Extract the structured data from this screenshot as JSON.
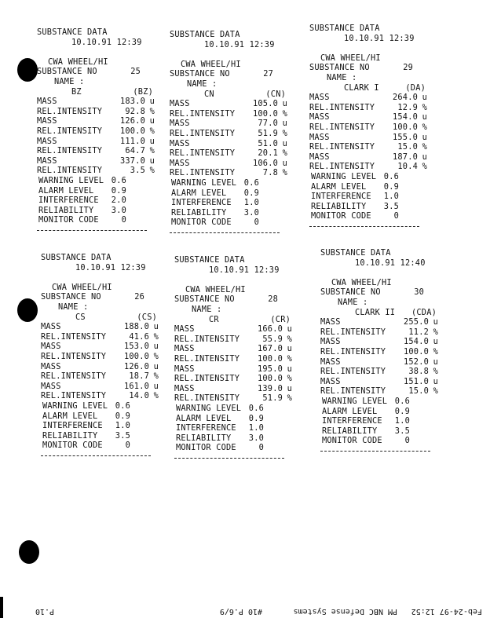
{
  "blocks": [
    {
      "title": "SUBSTANCE DATA",
      "datetime": "10.10.91 12:39",
      "header": "CWA WHEEL/HI",
      "substance_no_label": "SUBSTANCE NO",
      "substance_no": "25",
      "name_label": "NAME :",
      "name": "BZ",
      "code": "(BZ)",
      "rows": [
        [
          "MASS",
          "183.0",
          "u"
        ],
        [
          "REL.INTENSITY",
          "92.8",
          "%"
        ],
        [
          "MASS",
          "126.0",
          "u"
        ],
        [
          "REL.INTENSITY",
          "100.0",
          "%"
        ],
        [
          "MASS",
          "111.0",
          "u"
        ],
        [
          "REL.INTENSITY",
          "64.7",
          "%"
        ],
        [
          "MASS",
          "337.0",
          "u"
        ],
        [
          "REL.INTENSITY",
          "3.5",
          "%"
        ]
      ],
      "levels": [
        [
          "WARNING LEVEL",
          "0.6"
        ],
        [
          "ALARM LEVEL",
          "0.9"
        ],
        [
          "INTERFERENCE",
          "2.0"
        ],
        [
          "RELIABILITY",
          "3.0"
        ],
        [
          "MONITOR CODE",
          "0"
        ]
      ]
    },
    {
      "title": "SUBSTANCE DATA",
      "datetime": "10.10.91 12:39",
      "header": "CWA WHEEL/HI",
      "substance_no_label": "SUBSTANCE NO",
      "substance_no": "27",
      "name_label": "NAME :",
      "name": "CN",
      "code": "(CN)",
      "rows": [
        [
          "MASS",
          "105.0",
          "u"
        ],
        [
          "REL.INTENSITY",
          "100.0",
          "%"
        ],
        [
          "MASS",
          "77.0",
          "u"
        ],
        [
          "REL.INTENSITY",
          "51.9",
          "%"
        ],
        [
          "MASS",
          "51.0",
          "u"
        ],
        [
          "REL.INTENSITY",
          "20.1",
          "%"
        ],
        [
          "MASS",
          "106.0",
          "u"
        ],
        [
          "REL.INTENSITY",
          "7.8",
          "%"
        ]
      ],
      "levels": [
        [
          "WARNING LEVEL",
          "0.6"
        ],
        [
          "ALARM LEVEL",
          "0.9"
        ],
        [
          "INTERFERENCE",
          "1.0"
        ],
        [
          "RELIABILITY",
          "3.0"
        ],
        [
          "MONITOR CODE",
          "0"
        ]
      ]
    },
    {
      "title": "SUBSTANCE DATA",
      "datetime": "10.10.91 12:39",
      "header": "CWA WHEEL/HI",
      "substance_no_label": "SUBSTANCE NO",
      "substance_no": "29",
      "name_label": "NAME :",
      "name": "CLARK I",
      "code": "(DA)",
      "rows": [
        [
          "MASS",
          "264.0",
          "u"
        ],
        [
          "REL.INTENSITY",
          "12.9",
          "%"
        ],
        [
          "MASS",
          "154.0",
          "u"
        ],
        [
          "REL.INTENSITY",
          "100.0",
          "%"
        ],
        [
          "MASS",
          "155.0",
          "u"
        ],
        [
          "REL.INTENSITY",
          "15.0",
          "%"
        ],
        [
          "MASS",
          "187.0",
          "u"
        ],
        [
          "REL.INTENSITY",
          "10.4",
          "%"
        ]
      ],
      "levels": [
        [
          "WARNING LEVEL",
          "0.6"
        ],
        [
          "ALARM LEVEL",
          "0.9"
        ],
        [
          "INTERFERENCE",
          "1.0"
        ],
        [
          "RELIABILITY",
          "3.5"
        ],
        [
          "MONITOR CODE",
          "0"
        ]
      ]
    },
    {
      "title": "SUBSTANCE DATA",
      "datetime": "10.10.91 12:39",
      "header": "CWA WHEEL/HI",
      "substance_no_label": "SUBSTANCE NO",
      "substance_no": "26",
      "name_label": "NAME :",
      "name": "CS",
      "code": "(CS)",
      "rows": [
        [
          "MASS",
          "188.0",
          "u"
        ],
        [
          "REL.INTENSITY",
          "41.6",
          "%"
        ],
        [
          "MASS",
          "153.0",
          "u"
        ],
        [
          "REL.INTENSITY",
          "100.0",
          "%"
        ],
        [
          "MASS",
          "126.0",
          "u"
        ],
        [
          "REL.INTENSITY",
          "18.7",
          "%"
        ],
        [
          "MASS",
          "161.0",
          "u"
        ],
        [
          "REL.INTENSITY",
          "14.0",
          "%"
        ]
      ],
      "levels": [
        [
          "WARNING LEVEL",
          "0.6"
        ],
        [
          "ALARM LEVEL",
          "0.9"
        ],
        [
          "INTERFERENCE",
          "1.0"
        ],
        [
          "RELIABILITY",
          "3.5"
        ],
        [
          "MONITOR CODE",
          "0"
        ]
      ]
    },
    {
      "title": "SUBSTANCE DATA",
      "datetime": "10.10.91 12:39",
      "header": "CWA WHEEL/HI",
      "substance_no_label": "SUBSTANCE NO",
      "substance_no": "28",
      "name_label": "NAME :",
      "name": "CR",
      "code": "(CR)",
      "rows": [
        [
          "MASS",
          "166.0",
          "u"
        ],
        [
          "REL.INTENSITY",
          "55.9",
          "%"
        ],
        [
          "MASS",
          "167.0",
          "u"
        ],
        [
          "REL.INTENSITY",
          "100.0",
          "%"
        ],
        [
          "MASS",
          "195.0",
          "u"
        ],
        [
          "REL.INTENSITY",
          "100.0",
          "%"
        ],
        [
          "MASS",
          "139.0",
          "u"
        ],
        [
          "REL.INTENSITY",
          "51.9",
          "%"
        ]
      ],
      "levels": [
        [
          "WARNING LEVEL",
          "0.6"
        ],
        [
          "ALARM LEVEL",
          "0.9"
        ],
        [
          "INTERFERENCE",
          "1.0"
        ],
        [
          "RELIABILITY",
          "3.0"
        ],
        [
          "MONITOR CODE",
          "0"
        ]
      ]
    },
    {
      "title": "SUBSTANCE DATA",
      "datetime": "10.10.91 12:40",
      "header": "CWA WHEEL/HI",
      "substance_no_label": "SUBSTANCE NO",
      "substance_no": "30",
      "name_label": "NAME :",
      "name": "CLARK II",
      "code": "(CDA)",
      "rows": [
        [
          "MASS",
          "255.0",
          "u"
        ],
        [
          "REL.INTENSITY",
          "11.2",
          "%"
        ],
        [
          "MASS",
          "154.0",
          "u"
        ],
        [
          "REL.INTENSITY",
          "100.0",
          "%"
        ],
        [
          "MASS",
          "152.0",
          "u"
        ],
        [
          "REL.INTENSITY",
          "38.8",
          "%"
        ],
        [
          "MASS",
          "151.0",
          "u"
        ],
        [
          "REL.INTENSITY",
          "15.0",
          "%"
        ]
      ],
      "levels": [
        [
          "WARNING LEVEL",
          "0.6"
        ],
        [
          "ALARM LEVEL",
          "0.9"
        ],
        [
          "INTERFERENCE",
          "1.0"
        ],
        [
          "RELIABILITY",
          "3.5"
        ],
        [
          "MONITOR CODE",
          "0"
        ]
      ]
    }
  ],
  "fax_header": {
    "datetime": "Feb-24-97 12:52",
    "sender": "PM NBC Defense Systems",
    "page": "#10 P.6/9",
    "page_short": "P.10"
  }
}
